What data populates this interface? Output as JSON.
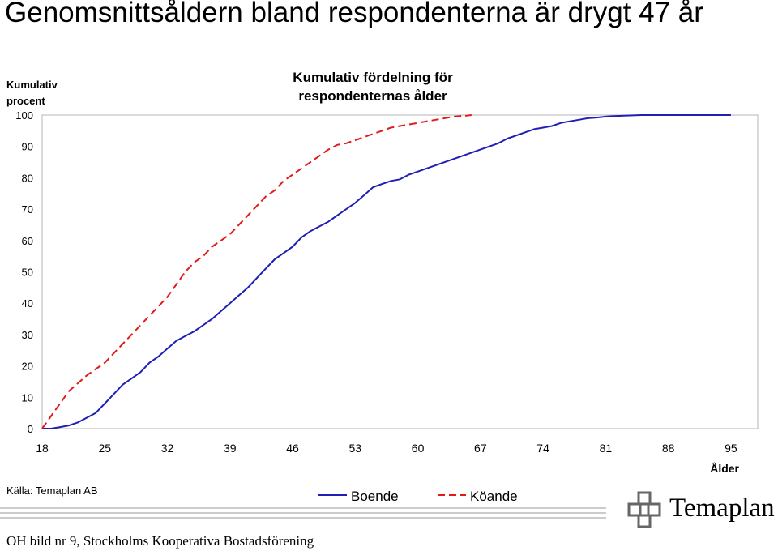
{
  "slide": {
    "title": "Genomsnittsåldern bland respondenterna är drygt 47 år",
    "source": "Källa: Temaplan AB",
    "footer": "OH bild nr 9, Stockholms Kooperativa Bostadsförening",
    "logo_text": "Temaplan",
    "logo_icon": "temaplan-logo-icon"
  },
  "chart_data": {
    "type": "line",
    "title": "Kumulativ fördelning för respondenternas ålder",
    "ylabel": "Kumulativ procent",
    "xlabel": "Ålder",
    "xlim": [
      18,
      98
    ],
    "ylim": [
      0,
      100
    ],
    "xticks": [
      18,
      25,
      32,
      39,
      46,
      53,
      60,
      67,
      74,
      81,
      88,
      95
    ],
    "yticks": [
      0,
      10,
      20,
      30,
      40,
      50,
      60,
      70,
      80,
      90,
      100
    ],
    "grid": false,
    "legend_position": "bottom",
    "series": [
      {
        "name": "Boende",
        "color": "#1f1fb4",
        "dash": "solid",
        "points": [
          [
            18,
            0
          ],
          [
            19,
            0
          ],
          [
            20,
            0.5
          ],
          [
            21,
            1
          ],
          [
            22,
            2
          ],
          [
            23,
            3.5
          ],
          [
            24,
            5
          ],
          [
            25,
            8
          ],
          [
            26,
            11
          ],
          [
            27,
            14
          ],
          [
            28,
            16
          ],
          [
            29,
            18
          ],
          [
            30,
            21
          ],
          [
            31,
            23
          ],
          [
            32,
            25.5
          ],
          [
            33,
            28
          ],
          [
            34,
            29.5
          ],
          [
            35,
            31
          ],
          [
            36,
            33
          ],
          [
            37,
            35
          ],
          [
            38,
            37.5
          ],
          [
            39,
            40
          ],
          [
            40,
            42.5
          ],
          [
            41,
            45
          ],
          [
            42,
            48
          ],
          [
            43,
            51
          ],
          [
            44,
            54
          ],
          [
            45,
            56
          ],
          [
            46,
            58
          ],
          [
            47,
            61
          ],
          [
            48,
            63
          ],
          [
            49,
            64.5
          ],
          [
            50,
            66
          ],
          [
            51,
            68
          ],
          [
            52,
            70
          ],
          [
            53,
            72
          ],
          [
            54,
            74.5
          ],
          [
            55,
            77
          ],
          [
            56,
            78
          ],
          [
            57,
            79
          ],
          [
            58,
            79.5
          ],
          [
            59,
            81
          ],
          [
            60,
            82
          ],
          [
            61,
            83
          ],
          [
            62,
            84
          ],
          [
            63,
            85
          ],
          [
            64,
            86
          ],
          [
            65,
            87
          ],
          [
            66,
            88
          ],
          [
            67,
            89
          ],
          [
            68,
            90
          ],
          [
            69,
            91
          ],
          [
            70,
            92.5
          ],
          [
            71,
            93.5
          ],
          [
            72,
            94.5
          ],
          [
            73,
            95.5
          ],
          [
            74,
            96
          ],
          [
            75,
            96.5
          ],
          [
            76,
            97.5
          ],
          [
            77,
            98
          ],
          [
            78,
            98.5
          ],
          [
            79,
            99
          ],
          [
            80,
            99.2
          ],
          [
            81,
            99.5
          ],
          [
            82,
            99.7
          ],
          [
            83,
            99.8
          ],
          [
            84,
            99.9
          ],
          [
            85,
            100
          ],
          [
            86,
            100
          ],
          [
            87,
            100
          ],
          [
            88,
            100
          ],
          [
            89,
            100
          ],
          [
            90,
            100
          ],
          [
            91,
            100
          ],
          [
            92,
            100
          ],
          [
            93,
            100
          ],
          [
            94,
            100
          ],
          [
            95,
            100
          ]
        ]
      },
      {
        "name": "Köande",
        "color": "#e11a1a",
        "dash": "dashed",
        "points": [
          [
            18,
            0
          ],
          [
            19,
            4
          ],
          [
            20,
            8
          ],
          [
            21,
            12
          ],
          [
            22,
            14.5
          ],
          [
            23,
            17
          ],
          [
            24,
            19
          ],
          [
            25,
            21
          ],
          [
            26,
            24
          ],
          [
            27,
            27
          ],
          [
            28,
            30
          ],
          [
            29,
            33
          ],
          [
            30,
            36
          ],
          [
            31,
            39
          ],
          [
            32,
            42
          ],
          [
            33,
            46
          ],
          [
            34,
            50
          ],
          [
            35,
            53
          ],
          [
            36,
            55
          ],
          [
            37,
            58
          ],
          [
            38,
            60
          ],
          [
            39,
            62
          ],
          [
            40,
            65
          ],
          [
            41,
            68
          ],
          [
            42,
            71
          ],
          [
            43,
            74
          ],
          [
            44,
            76
          ],
          [
            45,
            79
          ],
          [
            46,
            81
          ],
          [
            47,
            83
          ],
          [
            48,
            85
          ],
          [
            49,
            87
          ],
          [
            50,
            89
          ],
          [
            51,
            90.5
          ],
          [
            52,
            91
          ],
          [
            53,
            92
          ],
          [
            54,
            93
          ],
          [
            55,
            94
          ],
          [
            56,
            95
          ],
          [
            57,
            96
          ],
          [
            58,
            96.5
          ],
          [
            59,
            97
          ],
          [
            60,
            97.5
          ],
          [
            61,
            98
          ],
          [
            62,
            98.5
          ],
          [
            63,
            99
          ],
          [
            64,
            99.5
          ],
          [
            65,
            99.7
          ],
          [
            66,
            100
          ]
        ]
      }
    ]
  }
}
